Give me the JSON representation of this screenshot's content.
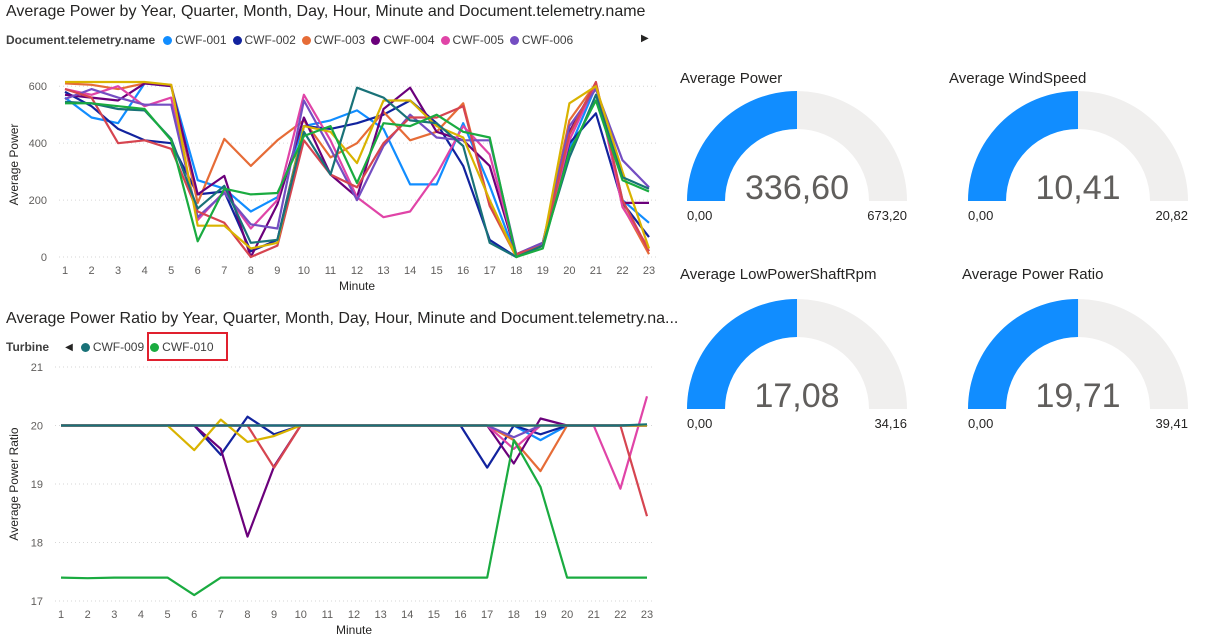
{
  "chart_data": [
    {
      "type": "line",
      "title": "Average Power by Year, Quarter, Month, Day, Hour, Minute and Document.telemetry.name",
      "legend_title": "Document.telemetry.name",
      "xlabel": "Minute",
      "ylabel": "Average Power",
      "ylim": [
        0,
        650
      ],
      "yticks": [
        0,
        200,
        400,
        600
      ],
      "categories": [
        "1",
        "2",
        "3",
        "4",
        "5",
        "6",
        "7",
        "8",
        "9",
        "10",
        "11",
        "12",
        "13",
        "14",
        "15",
        "16",
        "17",
        "18",
        "19",
        "20",
        "21",
        "22",
        "23"
      ],
      "grid": true,
      "legend_position": "top-left",
      "series": [
        {
          "name": "CWF-001",
          "color": "#118DFF",
          "values": [
            560,
            490,
            470,
            610,
            600,
            270,
            240,
            160,
            210,
            460,
            480,
            515,
            450,
            255,
            255,
            470,
            250,
            0,
            50,
            380,
            600,
            200,
            120
          ]
        },
        {
          "name": "CWF-002",
          "color": "#12239E",
          "values": [
            580,
            530,
            450,
            410,
            400,
            220,
            230,
            20,
            60,
            460,
            450,
            470,
            500,
            550,
            470,
            320,
            60,
            0,
            40,
            400,
            505,
            190,
            70
          ]
        },
        {
          "name": "CWF-003",
          "color": "#E66C37",
          "values": [
            610,
            605,
            590,
            610,
            605,
            190,
            415,
            320,
            410,
            480,
            350,
            400,
            510,
            410,
            440,
            540,
            180,
            0,
            40,
            480,
            610,
            180,
            10
          ]
        },
        {
          "name": "CWF-004",
          "color": "#6B007B",
          "values": [
            570,
            560,
            550,
            610,
            600,
            220,
            285,
            0,
            185,
            490,
            290,
            210,
            520,
            595,
            440,
            410,
            320,
            10,
            50,
            440,
            610,
            190,
            190
          ]
        },
        {
          "name": "CWF-005",
          "color": "#E044A7",
          "values": [
            590,
            570,
            600,
            530,
            560,
            130,
            230,
            100,
            200,
            570,
            410,
            210,
            140,
            160,
            290,
            460,
            360,
            10,
            40,
            410,
            610,
            175,
            30
          ]
        },
        {
          "name": "CWF-006",
          "color": "#744EC2",
          "values": [
            555,
            590,
            560,
            535,
            535,
            140,
            225,
            115,
            100,
            550,
            380,
            200,
            390,
            500,
            420,
            410,
            410,
            10,
            50,
            460,
            590,
            340,
            245
          ]
        },
        {
          "name": "",
          "color": "#D64550",
          "values": [
            590,
            560,
            400,
            410,
            380,
            160,
            120,
            0,
            40,
            410,
            290,
            245,
            400,
            490,
            490,
            530,
            180,
            10,
            40,
            430,
            615,
            200,
            20
          ]
        },
        {
          "name": "",
          "color": "#D9B300",
          "values": [
            615,
            615,
            615,
            615,
            605,
            110,
            110,
            30,
            50,
            460,
            440,
            330,
            550,
            550,
            460,
            420,
            200,
            0,
            40,
            540,
            600,
            300,
            30
          ]
        },
        {
          "name": "",
          "color": "#197278",
          "values": [
            545,
            540,
            520,
            515,
            415,
            170,
            250,
            50,
            60,
            440,
            290,
            595,
            560,
            480,
            470,
            390,
            50,
            0,
            40,
            350,
            570,
            280,
            240
          ]
        },
        {
          "name": "",
          "color": "#1AAB40",
          "values": [
            540,
            540,
            530,
            520,
            410,
            55,
            240,
            220,
            225,
            425,
            460,
            260,
            470,
            460,
            500,
            440,
            420,
            0,
            30,
            370,
            550,
            270,
            230
          ]
        }
      ]
    },
    {
      "type": "line",
      "title": "Average Power Ratio by Year, Quarter, Month, Day, Hour, Minute and Document.telemetry.na...",
      "legend_title": "Turbine",
      "xlabel": "Minute",
      "ylabel": "Average Power Ratio",
      "ylim": [
        17,
        21
      ],
      "yticks": [
        17,
        18,
        19,
        20,
        21
      ],
      "categories": [
        "1",
        "2",
        "3",
        "4",
        "5",
        "6",
        "7",
        "8",
        "9",
        "10",
        "11",
        "12",
        "13",
        "14",
        "15",
        "16",
        "17",
        "18",
        "19",
        "20",
        "21",
        "22",
        "23"
      ],
      "grid": true,
      "legend_position": "top-left",
      "series": [
        {
          "name": "",
          "color": "#118DFF",
          "values": [
            20,
            20,
            20,
            20,
            20,
            20,
            20,
            20,
            20,
            20,
            20,
            20,
            20,
            20,
            20,
            20,
            20,
            20,
            19.75,
            20,
            20,
            20,
            20
          ]
        },
        {
          "name": "",
          "color": "#12239E",
          "values": [
            20,
            20,
            20,
            20,
            20,
            20,
            19.5,
            20.15,
            19.85,
            20,
            20,
            20,
            20,
            20,
            20,
            20,
            19.28,
            20,
            19.85,
            20,
            20,
            20,
            20
          ]
        },
        {
          "name": "",
          "color": "#E66C37",
          "values": [
            20,
            20,
            20,
            20,
            20,
            20,
            20,
            20,
            20,
            20,
            20,
            20,
            20,
            20,
            20,
            20,
            20,
            19.75,
            19.22,
            20,
            20,
            20,
            20
          ]
        },
        {
          "name": "",
          "color": "#6B007B",
          "values": [
            20,
            20,
            20,
            20,
            20,
            20,
            19.6,
            18.1,
            19.3,
            20,
            20,
            20,
            20,
            20,
            20,
            20,
            20,
            19.35,
            20.12,
            20,
            20,
            20,
            20
          ]
        },
        {
          "name": "",
          "color": "#E044A7",
          "values": [
            20,
            20,
            20,
            20,
            20,
            20,
            20,
            20,
            20,
            20,
            20,
            20,
            20,
            20,
            20,
            20,
            20,
            19.6,
            20,
            20,
            20,
            18.92,
            20.5
          ]
        },
        {
          "name": "",
          "color": "#744EC2",
          "values": [
            20,
            20,
            20,
            20,
            20,
            20,
            20,
            20,
            20,
            20,
            20,
            20,
            20,
            20,
            20,
            20,
            20,
            19.8,
            20,
            20,
            20,
            20,
            20
          ]
        },
        {
          "name": "",
          "color": "#D64550",
          "values": [
            20,
            20,
            20,
            20,
            20,
            20,
            20,
            20,
            19.28,
            20,
            20,
            20,
            20,
            20,
            20,
            20,
            20,
            20,
            20,
            20,
            20,
            20,
            18.45
          ]
        },
        {
          "name": "",
          "color": "#D9B300",
          "values": [
            20,
            20,
            20,
            20,
            20,
            19.58,
            20.1,
            19.72,
            19.82,
            20,
            20,
            20,
            20,
            20,
            20,
            20,
            20,
            20,
            20,
            20,
            20,
            20,
            20
          ]
        },
        {
          "name": "CWF-009",
          "color": "#197278",
          "values": [
            20,
            20,
            20,
            20,
            20,
            20,
            20,
            20,
            20,
            20,
            20,
            20,
            20,
            20,
            20,
            20,
            20,
            20,
            20,
            20,
            20,
            20,
            20.02
          ]
        },
        {
          "name": "CWF-010",
          "color": "#1AAB40",
          "values": [
            17.4,
            17.39,
            17.4,
            17.4,
            17.4,
            17.1,
            17.4,
            17.4,
            17.4,
            17.4,
            17.4,
            17.4,
            17.4,
            17.4,
            17.4,
            17.4,
            17.4,
            19.75,
            18.95,
            17.4,
            17.4,
            17.4,
            17.4
          ]
        }
      ]
    }
  ],
  "gauges": [
    {
      "title": "Average Power",
      "value": 336.6,
      "min": 0,
      "max": 673.2,
      "value_label": "336,60",
      "min_label": "0,00",
      "max_label": "673,20"
    },
    {
      "title": "Average WindSpeed",
      "value": 10.41,
      "min": 0,
      "max": 20.82,
      "value_label": "10,41",
      "min_label": "0,00",
      "max_label": "20,82"
    },
    {
      "title": "Average LowPowerShaftRpm",
      "value": 17.08,
      "min": 0,
      "max": 34.16,
      "value_label": "17,08",
      "min_label": "0,00",
      "max_label": "34,16"
    },
    {
      "title": "Average Power Ratio",
      "value": 19.71,
      "min": 0,
      "max": 39.41,
      "value_label": "19,71",
      "min_label": "0,00",
      "max_label": "39,41"
    }
  ],
  "colors": {
    "gauge_fill": "#118DFF",
    "gauge_track": "#F0EFEE",
    "highlight_box": "#E0202E"
  },
  "icons": {
    "legend_next": "chevron-right-icon",
    "legend_prev": "chevron-left-icon"
  }
}
